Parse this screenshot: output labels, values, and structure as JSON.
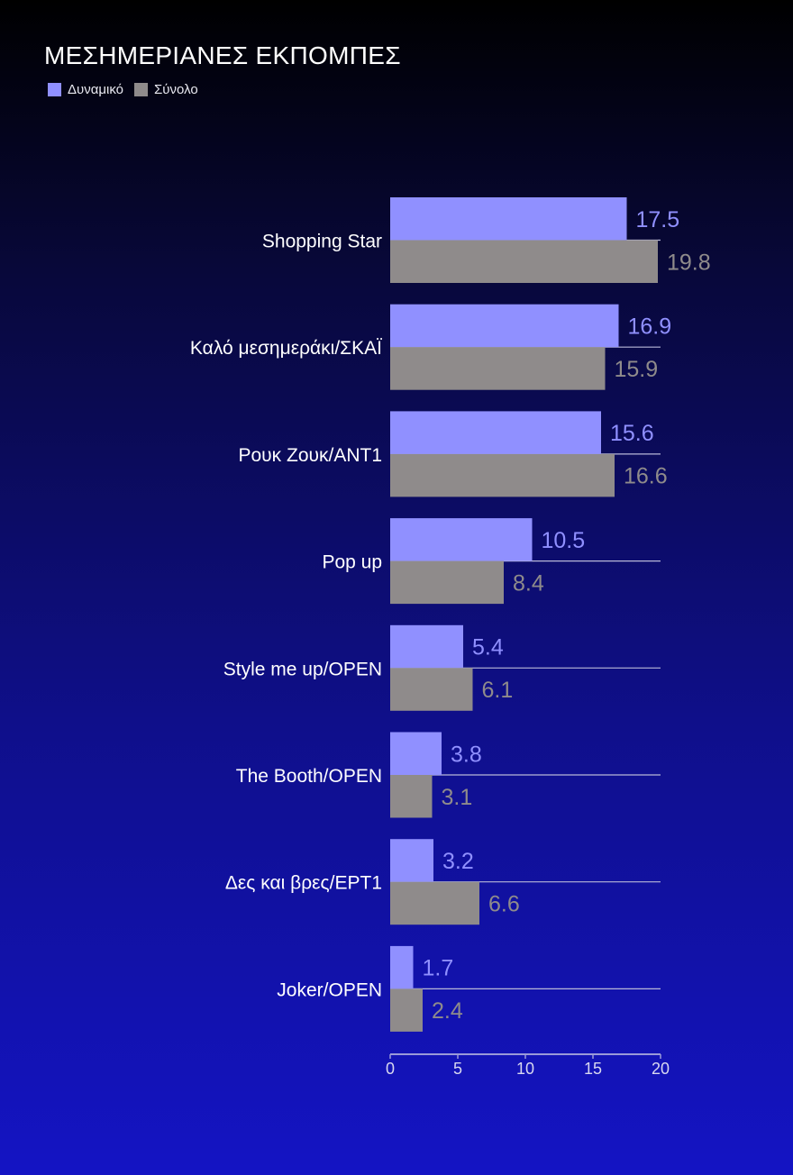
{
  "chart_data": {
    "type": "bar",
    "orientation": "horizontal",
    "title": "ΜΕΣΗΜΕΡΙΑΝΕΣ ΕΚΠΟΜΠΕΣ",
    "categories": [
      "Shopping Star",
      "Καλό μεσημεράκι/ΣΚΑΪ",
      "Ρουκ Ζουκ/ΑΝΤ1",
      "Pop up",
      "Style me up/OPEN",
      "The Booth/OPEN",
      "Δες και βρες/ΕΡΤ1",
      "Joker/OPEN"
    ],
    "series": [
      {
        "name": "Δυναμικό",
        "color": "#9090ff",
        "values": [
          17.5,
          16.9,
          15.6,
          10.5,
          5.4,
          3.8,
          3.2,
          1.7
        ],
        "labels": [
          "17.5",
          "16.9",
          "15.6",
          "10.5",
          "5.4",
          "3.8",
          "3.2",
          "1.7"
        ]
      },
      {
        "name": "Σύνολο",
        "color": "#8f8b8b",
        "values": [
          19.8,
          15.9,
          16.6,
          8.4,
          6.1,
          3.1,
          6.6,
          2.4
        ],
        "labels": [
          "19.8",
          "15.9",
          "16.6",
          "8.4",
          "6.1",
          "3.1",
          "6.6",
          "2.4"
        ]
      }
    ],
    "xlim": [
      0,
      20
    ],
    "xticks": [
      "0",
      "5",
      "10",
      "15",
      "20"
    ],
    "xtick_values": [
      0,
      5,
      10,
      15,
      20
    ],
    "legend_position": "top-left",
    "grid": false
  }
}
